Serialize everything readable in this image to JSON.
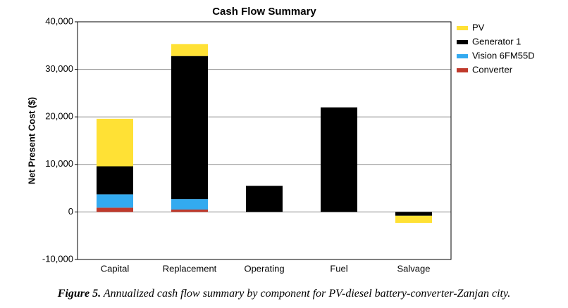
{
  "chart_data": {
    "type": "stacked_bar",
    "title": "Cash Flow Summary",
    "y_label": "Net Present Cost ($)",
    "categories": [
      "Capital",
      "Replacement",
      "Operating",
      "Fuel",
      "Salvage"
    ],
    "series": [
      {
        "name": "PV",
        "color": "#ffe135",
        "values": [
          10000,
          2500,
          0,
          0,
          -1500
        ]
      },
      {
        "name": "Generator 1",
        "color": "#000000",
        "values": [
          5900,
          30100,
          5500,
          22000,
          -800
        ]
      },
      {
        "name": "Vision 6FM55D",
        "color": "#33aaf0",
        "values": [
          2800,
          2200,
          0,
          0,
          0
        ]
      },
      {
        "name": "Converter",
        "color": "#c0392b",
        "values": [
          900,
          500,
          0,
          0,
          0
        ]
      }
    ],
    "ylim": [
      -10000,
      40000
    ],
    "yticks": [
      {
        "value": -10000,
        "label": "-10,000"
      },
      0,
      {
        "value": 10000,
        "label": "10,000"
      },
      {
        "value": 20000,
        "label": "20,000"
      },
      {
        "value": 30000,
        "label": "30,000"
      },
      {
        "value": 40000,
        "label": "40,000"
      }
    ],
    "grid": true,
    "legend": "right"
  },
  "caption": {
    "label": "Figure 5.",
    "text": "Annualized cash flow summary by component for PV-diesel battery-converter-Zanjan city."
  }
}
